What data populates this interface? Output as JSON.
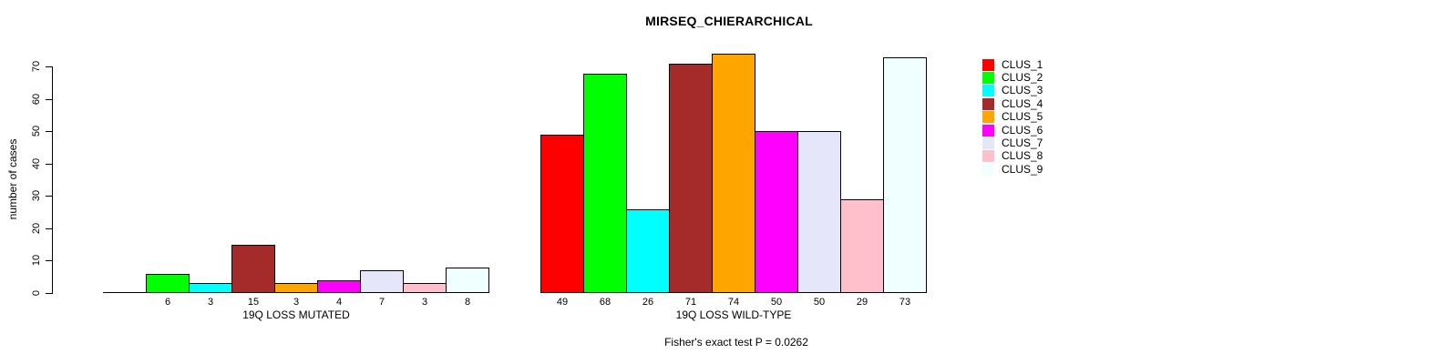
{
  "title": "MIRSEQ_CHIERARCHICAL",
  "y_axis": {
    "label": "number of cases",
    "ticks": [
      0,
      10,
      20,
      30,
      40,
      50,
      60,
      70
    ]
  },
  "annotation": "Fisher's exact test P = 0.0262",
  "chart_data": {
    "type": "bar",
    "title": "MIRSEQ_CHIERARCHICAL",
    "xlabel": "",
    "ylabel": "number of cases",
    "ylim": [
      0,
      74
    ],
    "yticks": [
      0,
      10,
      20,
      30,
      40,
      50,
      60,
      70
    ],
    "grid": false,
    "legend_position": "right",
    "categories": [
      "CLUS_1",
      "CLUS_2",
      "CLUS_3",
      "CLUS_4",
      "CLUS_5",
      "CLUS_6",
      "CLUS_7",
      "CLUS_8",
      "CLUS_9"
    ],
    "colors": [
      "#FF0000",
      "#00FF00",
      "#00FFFF",
      "#A52A2A",
      "#FFA500",
      "#FF00FF",
      "#E6E6FA",
      "#FFC0CB",
      "#F0FFFF"
    ],
    "groups": [
      {
        "label": "19Q LOSS MUTATED",
        "values": [
          0,
          6,
          3,
          15,
          3,
          4,
          7,
          3,
          8
        ],
        "bar_labels": [
          "",
          "6",
          "3",
          "15",
          "3",
          "4",
          "7",
          "3",
          "8"
        ]
      },
      {
        "label": "19Q LOSS WILD-TYPE",
        "values": [
          49,
          68,
          26,
          71,
          74,
          50,
          50,
          29,
          73
        ],
        "bar_labels": [
          "49",
          "68",
          "26",
          "71",
          "74",
          "50",
          "50",
          "29",
          "73"
        ]
      }
    ],
    "annotation": "Fisher's exact test P = 0.0262"
  }
}
